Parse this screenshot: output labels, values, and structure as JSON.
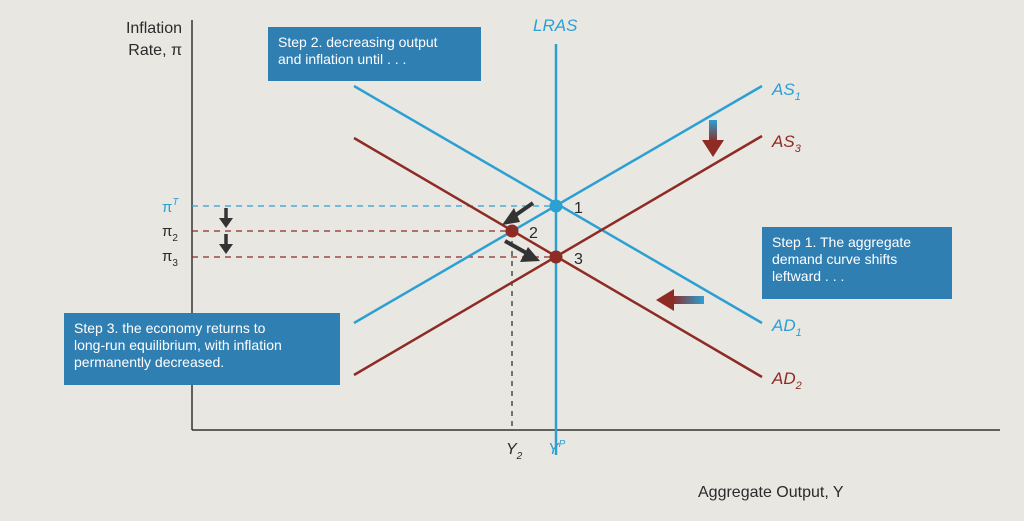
{
  "axes": {
    "y_title": "Inflation\nRate, π",
    "x_title": "Aggregate Output, Y",
    "pi_labels": [
      "π",
      "π",
      "π"
    ],
    "pi_sub": [
      "T",
      "2",
      "3"
    ],
    "y_labels": [
      "Y",
      "Y"
    ],
    "y_sub": [
      "2",
      "P"
    ]
  },
  "curves": {
    "lras": "LRAS",
    "as1": "AS",
    "as1_sub": "1",
    "as3": "AS",
    "as3_sub": "3",
    "ad1": "AD",
    "ad1_sub": "1",
    "ad2": "AD",
    "ad2_sub": "2"
  },
  "points": [
    "1",
    "2",
    "3"
  ],
  "callouts": {
    "step2": "Step 2. decreasing output\nand inflation until . . .",
    "step1": "Step 1. The aggregate\ndemand curve shifts\nleftward . . .",
    "step3": "Step 3. the economy returns to\nlong-run equilibrium, with inflation\npermanently decreased."
  },
  "colors": {
    "blue": "#2c9fd3",
    "red": "#8e2b24",
    "box": "#2f7fb3",
    "arrow": "#333333"
  }
}
